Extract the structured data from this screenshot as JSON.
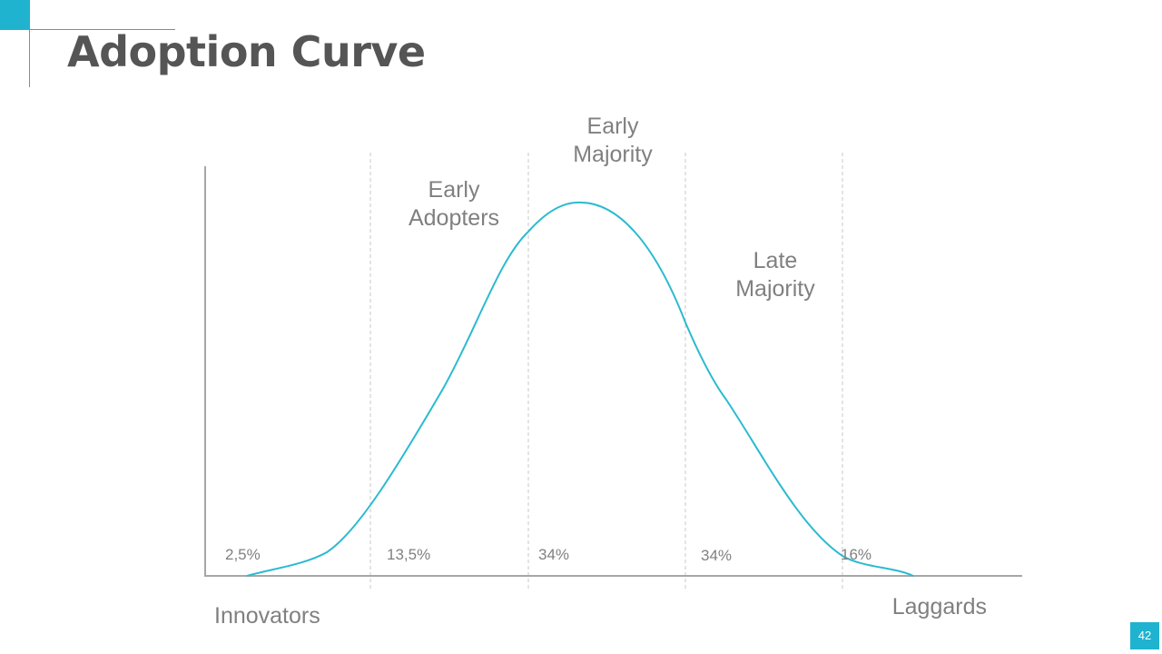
{
  "title": "Adoption Curve",
  "page_number": "42",
  "colors": {
    "accent": "#1fb3cf",
    "curve": "#2bbad0",
    "text": "#808080",
    "title": "#555555",
    "axis": "#a6a6a6",
    "divider": "#c8c8c8"
  },
  "chart_data": {
    "type": "area",
    "title": "",
    "xlabel": "",
    "ylabel": "",
    "grid": false,
    "legend": "none",
    "segments": [
      {
        "name": "Innovators",
        "lines": [
          "Innovators"
        ],
        "percent": "2,5%"
      },
      {
        "name": "Early Adopters",
        "lines": [
          "Early",
          "Adopters"
        ],
        "percent": "13,5%"
      },
      {
        "name": "Early Majority",
        "lines": [
          "Early",
          "Majority"
        ],
        "percent": "34%"
      },
      {
        "name": "Late Majority",
        "lines": [
          "Late",
          "Majority"
        ],
        "percent": "34%"
      },
      {
        "name": "Laggards",
        "lines": [
          "Laggards"
        ],
        "percent": "16%"
      }
    ]
  }
}
